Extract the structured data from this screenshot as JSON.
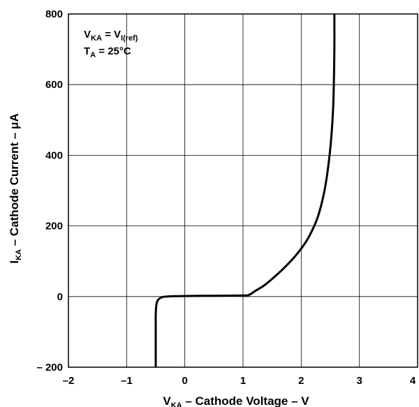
{
  "chart_data": {
    "type": "line",
    "xlabel": {
      "main": "V",
      "sub": "KA",
      "rest": " – Cathode Voltage – V"
    },
    "ylabel": {
      "main": "I",
      "sub": "KA",
      "rest": " – Cathode Current – μA"
    },
    "xlim": [
      -2,
      4
    ],
    "ylim": [
      -200,
      800
    ],
    "x_ticks": [
      -2,
      -1,
      0,
      1,
      2,
      3,
      4
    ],
    "x_tick_labels": [
      "–2",
      "–1",
      "0",
      "1",
      "2",
      "3",
      "4"
    ],
    "y_ticks": [
      -200,
      0,
      200,
      400,
      600,
      800
    ],
    "y_tick_labels": [
      "– 200",
      "0",
      "200",
      "400",
      "600",
      "800"
    ],
    "grid": true,
    "annotation": {
      "line1": {
        "a": "V",
        "a_sub": "KA",
        "eq": " = V",
        "b_sub": "I(ref)"
      },
      "line2": {
        "a": "T",
        "a_sub": "A",
        "rest": " = 25°C"
      }
    },
    "series": [
      {
        "color": "#000000",
        "x": [
          -0.5,
          -0.5,
          -0.5,
          -0.49,
          -0.47,
          -0.43,
          -0.38,
          -0.3,
          -0.2,
          0.2,
          1.0,
          1.1,
          1.15,
          1.2,
          1.35,
          1.5,
          1.7,
          1.9,
          2.1,
          2.25,
          2.33,
          2.4,
          2.45,
          2.5,
          2.53,
          2.55,
          2.56,
          2.57,
          2.57
        ],
        "y": [
          -200,
          -100,
          -50,
          -25,
          -12,
          -5,
          -1,
          0,
          1,
          2,
          3,
          5,
          9,
          15,
          30,
          50,
          80,
          115,
          160,
          210,
          250,
          300,
          350,
          420,
          480,
          540,
          600,
          700,
          800
        ]
      }
    ]
  }
}
